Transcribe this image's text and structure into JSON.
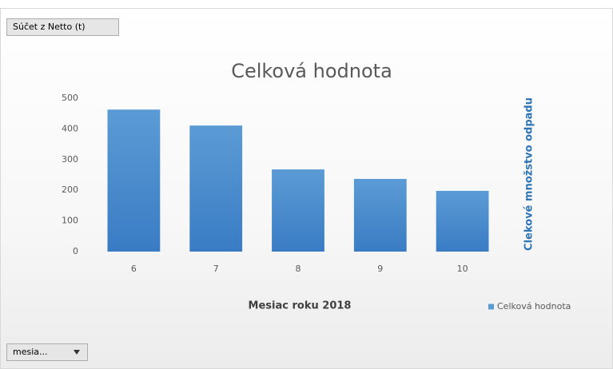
{
  "chart_data": {
    "type": "bar",
    "title": "Celková hodnota",
    "field_buttons": [
      "Súčet z Netto (t)",
      "mesia..."
    ],
    "x_label": "Mesiac roku 2018",
    "y_label": "Clekové množstvo odpadu",
    "categories": [
      "6",
      "7",
      "8",
      "9",
      "10"
    ],
    "series": [
      {
        "name": "Celková hodnota",
        "color": "#5b9bd5",
        "values": [
          463,
          411,
          268,
          237,
          198
        ]
      }
    ],
    "ylim": [
      0,
      500
    ],
    "yticks": [
      0,
      100,
      200,
      300,
      400,
      500
    ],
    "grid": false,
    "legend": "bottom-right"
  }
}
